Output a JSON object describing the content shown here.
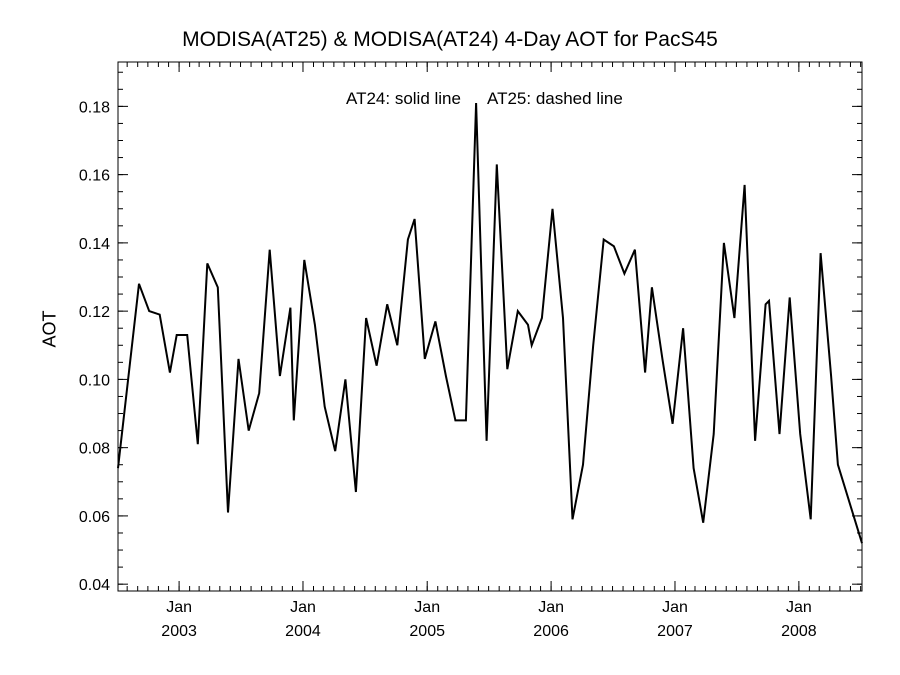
{
  "chart_data": {
    "type": "line",
    "title": "MODISA(AT25) & MODISA(AT24) 4-Day AOT for PacS45",
    "ylabel": "AOT",
    "xlabel": "",
    "annotations": [
      "AT24: solid line",
      "AT25: dashed line"
    ],
    "ylim": [
      0.038,
      0.193
    ],
    "xlim": [
      "2002-07-05",
      "2008-07-05"
    ],
    "yticks": [
      0.04,
      0.06,
      0.08,
      0.1,
      0.12,
      0.14,
      0.16,
      0.18
    ],
    "ytick_labels": [
      "0.04",
      "0.06",
      "0.08",
      "0.10",
      "0.12",
      "0.14",
      "0.16",
      "0.18"
    ],
    "xticks": [
      {
        "date": "2003-01-01",
        "month": "Jan",
        "year": "2003"
      },
      {
        "date": "2004-01-01",
        "month": "Jan",
        "year": "2004"
      },
      {
        "date": "2005-01-01",
        "month": "Jan",
        "year": "2005"
      },
      {
        "date": "2006-01-01",
        "month": "Jan",
        "year": "2006"
      },
      {
        "date": "2007-01-01",
        "month": "Jan",
        "year": "2007"
      },
      {
        "date": "2008-01-01",
        "month": "Jan",
        "year": "2008"
      }
    ],
    "series": [
      {
        "style": "solid",
        "color": "#000000",
        "points": [
          [
            "2002-07-05",
            0.074
          ],
          [
            "2002-08-05",
            0.101
          ],
          [
            "2002-09-05",
            0.128
          ],
          [
            "2002-10-05",
            0.12
          ],
          [
            "2002-11-05",
            0.119
          ],
          [
            "2002-12-05",
            0.102
          ],
          [
            "2002-12-25",
            0.113
          ],
          [
            "2003-01-25",
            0.113
          ],
          [
            "2003-02-25",
            0.081
          ],
          [
            "2003-03-25",
            0.134
          ],
          [
            "2003-04-25",
            0.127
          ],
          [
            "2003-05-25",
            0.061
          ],
          [
            "2003-06-25",
            0.106
          ],
          [
            "2003-07-25",
            0.085
          ],
          [
            "2003-08-25",
            0.096
          ],
          [
            "2003-09-25",
            0.138
          ],
          [
            "2003-10-25",
            0.101
          ],
          [
            "2003-11-25",
            0.121
          ],
          [
            "2003-12-05",
            0.088
          ],
          [
            "2004-01-05",
            0.135
          ],
          [
            "2004-02-05",
            0.116
          ],
          [
            "2004-03-05",
            0.092
          ],
          [
            "2004-04-05",
            0.079
          ],
          [
            "2004-05-05",
            0.1
          ],
          [
            "2004-06-05",
            0.067
          ],
          [
            "2004-07-05",
            0.118
          ],
          [
            "2004-08-05",
            0.104
          ],
          [
            "2004-09-05",
            0.122
          ],
          [
            "2004-10-05",
            0.11
          ],
          [
            "2004-11-05",
            0.141
          ],
          [
            "2004-11-25",
            0.147
          ],
          [
            "2004-12-25",
            0.106
          ],
          [
            "2005-01-25",
            0.117
          ],
          [
            "2005-02-25",
            0.101
          ],
          [
            "2005-03-25",
            0.088
          ],
          [
            "2005-04-25",
            0.088
          ],
          [
            "2005-05-25",
            0.181
          ],
          [
            "2005-06-25",
            0.082
          ],
          [
            "2005-07-25",
            0.163
          ],
          [
            "2005-08-25",
            0.103
          ],
          [
            "2005-09-25",
            0.12
          ],
          [
            "2005-10-25",
            0.116
          ],
          [
            "2005-11-05",
            0.11
          ],
          [
            "2005-12-05",
            0.118
          ],
          [
            "2006-01-05",
            0.15
          ],
          [
            "2006-02-05",
            0.118
          ],
          [
            "2006-03-05",
            0.059
          ],
          [
            "2006-04-05",
            0.075
          ],
          [
            "2006-05-05",
            0.11
          ],
          [
            "2006-06-05",
            0.141
          ],
          [
            "2006-07-05",
            0.139
          ],
          [
            "2006-08-05",
            0.131
          ],
          [
            "2006-09-05",
            0.138
          ],
          [
            "2006-10-05",
            0.102
          ],
          [
            "2006-10-25",
            0.127
          ],
          [
            "2006-11-25",
            0.106
          ],
          [
            "2006-12-25",
            0.087
          ],
          [
            "2007-01-25",
            0.115
          ],
          [
            "2007-02-25",
            0.074
          ],
          [
            "2007-03-25",
            0.058
          ],
          [
            "2007-04-25",
            0.084
          ],
          [
            "2007-05-25",
            0.14
          ],
          [
            "2007-06-25",
            0.118
          ],
          [
            "2007-07-25",
            0.157
          ],
          [
            "2007-08-25",
            0.082
          ],
          [
            "2007-09-25",
            0.122
          ],
          [
            "2007-10-05",
            0.123
          ],
          [
            "2007-11-05",
            0.084
          ],
          [
            "2007-12-05",
            0.124
          ],
          [
            "2008-01-05",
            0.084
          ],
          [
            "2008-02-05",
            0.059
          ],
          [
            "2008-03-05",
            0.137
          ],
          [
            "2008-04-05",
            0.101
          ],
          [
            "2008-04-25",
            0.075
          ],
          [
            "2008-07-05",
            0.052
          ]
        ]
      }
    ]
  }
}
